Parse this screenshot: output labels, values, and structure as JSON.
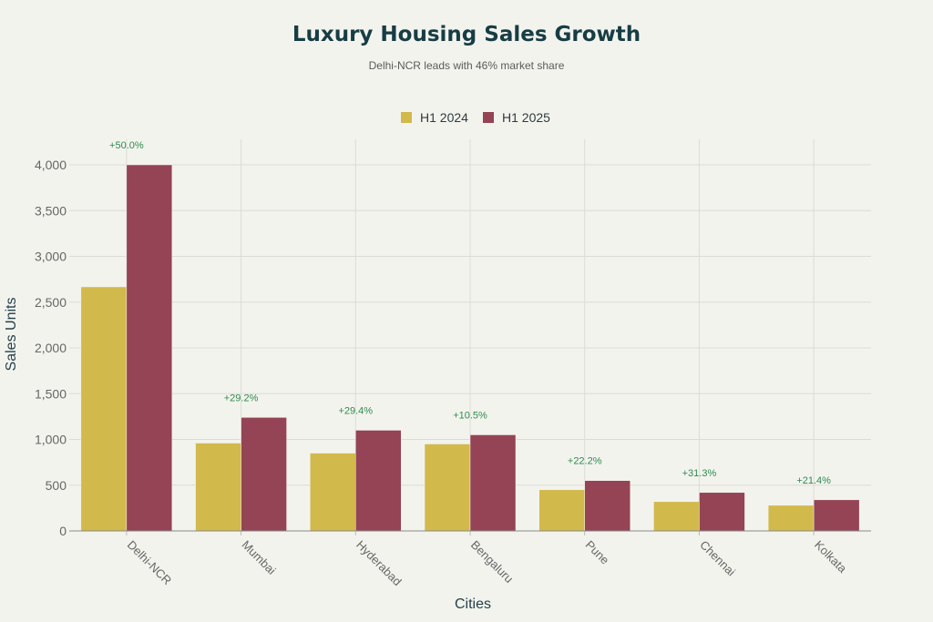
{
  "chart_data": {
    "type": "bar",
    "title": "Luxury Housing Sales Growth",
    "subtitle": "Delhi-NCR leads with 46% market share",
    "xlabel": "Cities",
    "ylabel": "Sales Units",
    "categories": [
      "Delhi-NCR",
      "Mumbai",
      "Hyderabad",
      "Bengaluru",
      "Pune",
      "Chennai",
      "Kolkata"
    ],
    "series": [
      {
        "name": "H1 2024",
        "color": "#d2b94b",
        "values": [
          2667,
          960,
          850,
          950,
          450,
          320,
          280
        ]
      },
      {
        "name": "H1 2025",
        "color": "#944454",
        "values": [
          4000,
          1240,
          1100,
          1050,
          550,
          420,
          340
        ]
      }
    ],
    "annotations": [
      "+50.0%",
      "+29.2%",
      "+29.4%",
      "+10.5%",
      "+22.2%",
      "+31.3%",
      "+21.4%"
    ],
    "yticks": [
      0,
      500,
      1000,
      1500,
      2000,
      2500,
      3000,
      3500,
      4000
    ],
    "ytick_labels": [
      "0",
      "500",
      "1,000",
      "1,500",
      "2,000",
      "2,500",
      "3,000",
      "3,500",
      "4,000"
    ],
    "ylim": [
      0,
      4280
    ],
    "grid": true,
    "legend_position": "top-center"
  }
}
